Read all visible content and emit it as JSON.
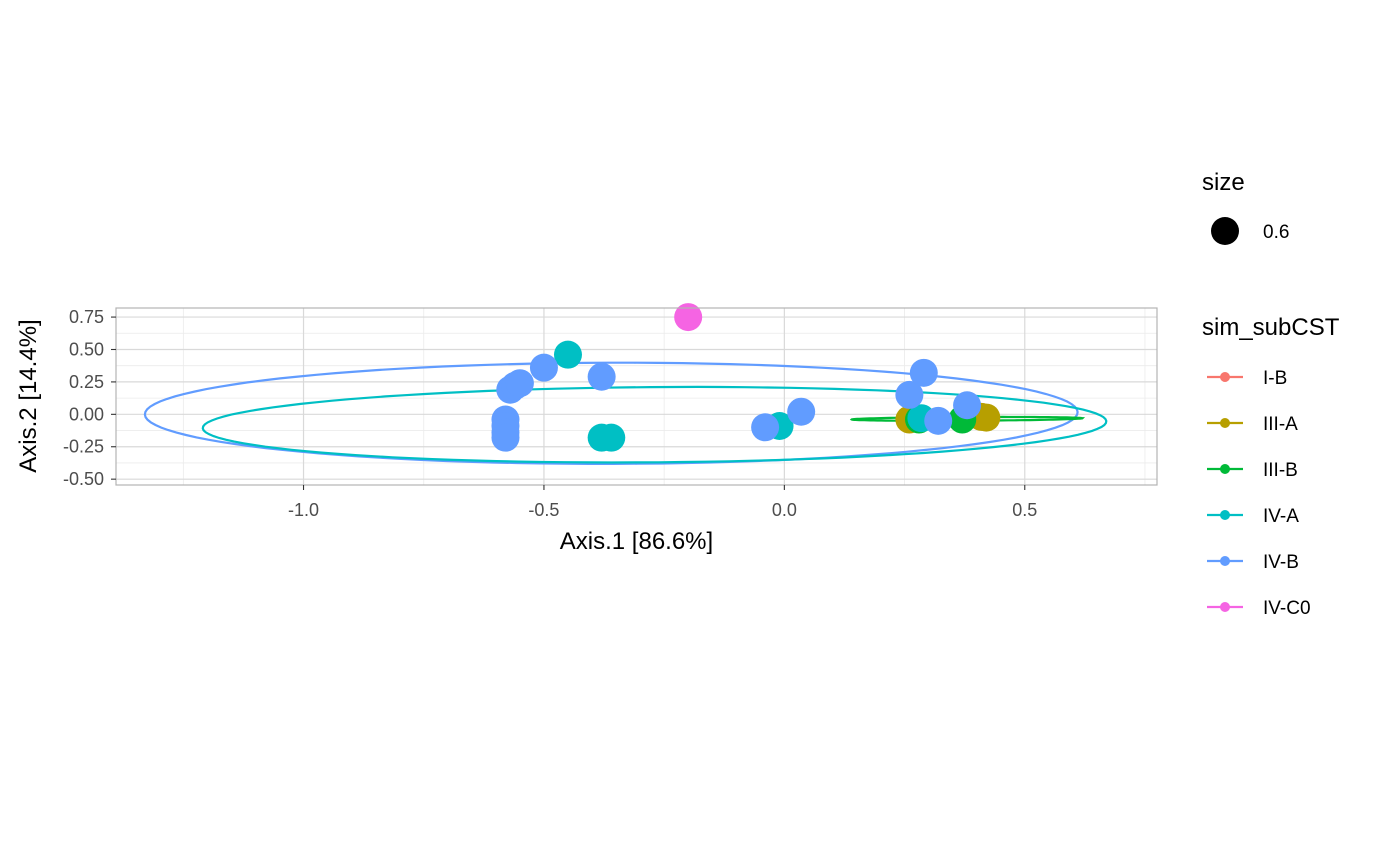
{
  "chart_data": {
    "type": "scatter",
    "xlabel": "Axis.1   [86.6%]",
    "ylabel": "Axis.2   [14.4%]",
    "xlim": [
      -1.39,
      0.775
    ],
    "ylim": [
      -0.545,
      0.82
    ],
    "x_ticks": [
      -1.0,
      -0.5,
      0.0,
      0.5
    ],
    "x_tick_labels": [
      "-1.0",
      "-0.5",
      "0.0",
      "0.5"
    ],
    "y_ticks": [
      -0.5,
      -0.25,
      0.0,
      0.25,
      0.5,
      0.75
    ],
    "y_tick_labels": [
      "-0.50",
      "-0.25",
      "0.00",
      "0.25",
      "0.50",
      "0.75"
    ],
    "grid": true,
    "legend_placement": "right",
    "size_legend": {
      "title": "size",
      "entries": [
        {
          "label": "0.6"
        }
      ]
    },
    "color_legend": {
      "title": "sim_subCST",
      "entries": [
        {
          "label": "I-B",
          "color": "#F8766D"
        },
        {
          "label": "III-A",
          "color": "#B79F00"
        },
        {
          "label": "III-B",
          "color": "#00BA38"
        },
        {
          "label": "IV-A",
          "color": "#00BFC4"
        },
        {
          "label": "IV-B",
          "color": "#619CFF"
        },
        {
          "label": "IV-C0",
          "color": "#F564E3"
        }
      ]
    },
    "series": [
      {
        "name": "III-A",
        "color": "#B79F00",
        "points": [
          [
            0.26,
            -0.04
          ],
          [
            0.41,
            -0.02
          ],
          [
            0.42,
            -0.025
          ]
        ]
      },
      {
        "name": "III-B",
        "color": "#00BA38",
        "points": [
          [
            0.28,
            -0.04
          ],
          [
            0.37,
            -0.04
          ]
        ]
      },
      {
        "name": "IV-A",
        "color": "#00BFC4",
        "points": [
          [
            -0.45,
            0.46
          ],
          [
            -0.38,
            -0.18
          ],
          [
            -0.36,
            -0.18
          ],
          [
            -0.01,
            -0.09
          ],
          [
            0.285,
            -0.03
          ]
        ]
      },
      {
        "name": "IV-B",
        "color": "#619CFF",
        "points": [
          [
            -0.58,
            -0.04
          ],
          [
            -0.58,
            -0.09
          ],
          [
            -0.58,
            -0.14
          ],
          [
            -0.58,
            -0.18
          ],
          [
            -0.57,
            0.19
          ],
          [
            -0.56,
            0.22
          ],
          [
            -0.55,
            0.24
          ],
          [
            -0.5,
            0.36
          ],
          [
            -0.38,
            0.29
          ],
          [
            -0.04,
            -0.1
          ],
          [
            0.035,
            0.02
          ],
          [
            0.26,
            0.15
          ],
          [
            0.29,
            0.32
          ],
          [
            0.32,
            -0.05
          ],
          [
            0.38,
            0.07
          ]
        ]
      },
      {
        "name": "IV-C0",
        "color": "#F564E3",
        "points": [
          [
            -0.2,
            0.75
          ]
        ]
      }
    ],
    "ellipses": [
      {
        "name": "IV-B",
        "color": "#619CFF",
        "cx": -0.36,
        "cy": 0.008,
        "rx": 0.97,
        "ry": 0.39,
        "angle": 0.01
      },
      {
        "name": "IV-A",
        "color": "#00BFC4",
        "cx": -0.27,
        "cy": -0.08,
        "rx": 0.94,
        "ry": 0.29,
        "angle": 0.03
      },
      {
        "name": "III-B",
        "color": "#00BA38",
        "cx": 0.38,
        "cy": -0.035,
        "rx": 0.24,
        "ry": 0.014,
        "angle": 0.02
      }
    ]
  }
}
